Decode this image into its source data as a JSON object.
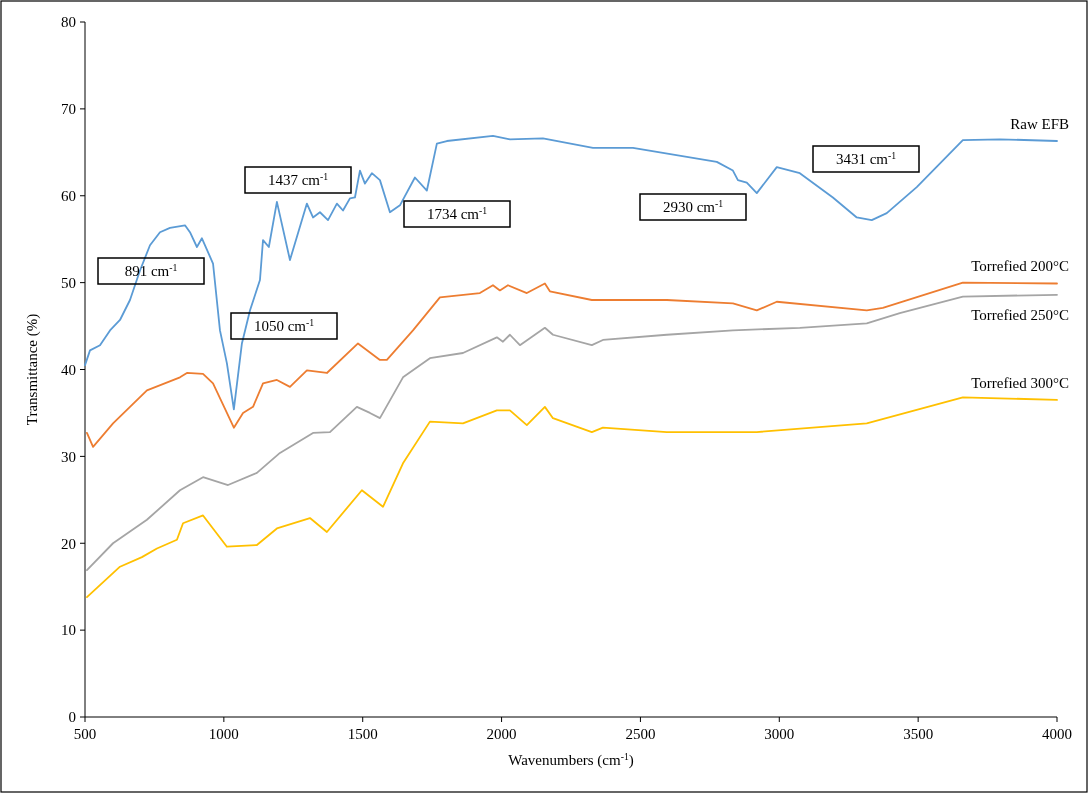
{
  "chart_data": {
    "type": "line",
    "xlabel": "Wavenumbers (cm$^{-1}$)",
    "ylabel": "Transmittance (%)",
    "xlim": [
      500,
      4000
    ],
    "xticks": [
      500,
      1000,
      1500,
      2000,
      2500,
      3000,
      3500,
      4000
    ],
    "ylim": [
      0,
      80
    ],
    "yticks": [
      0,
      10,
      20,
      30,
      40,
      50,
      60,
      70,
      80
    ],
    "grid": false,
    "legend": false,
    "marker": "none",
    "line_style": "solid",
    "series": [
      {
        "name": "Raw EFB",
        "color": "#5b9bd5",
        "x": [
          500,
          518,
          554,
          590,
          626,
          662,
          698,
          734,
          770,
          806,
          860,
          878,
          903,
          921,
          961,
          986,
          1011,
          1036,
          1065,
          1094,
          1130,
          1141,
          1162,
          1191,
          1238,
          1299,
          1321,
          1346,
          1375,
          1407,
          1429,
          1454,
          1472,
          1490,
          1508,
          1533,
          1562,
          1598,
          1634,
          1688,
          1731,
          1767,
          1803,
          1969,
          2030,
          2149,
          2329,
          2473,
          2775,
          2833,
          2851,
          2883,
          2919,
          2991,
          3074,
          3193,
          3279,
          3333,
          3387,
          3495,
          3661,
          3794,
          4000
        ],
        "values": [
          40.5,
          42.2,
          42.8,
          44.5,
          45.7,
          48,
          51.4,
          54.3,
          55.8,
          56.3,
          56.6,
          55.8,
          54.1,
          55.1,
          52.2,
          44.5,
          40.7,
          35.4,
          43,
          46.8,
          50.3,
          54.9,
          54.1,
          59.3,
          52.6,
          59.1,
          57.5,
          58.1,
          57.2,
          59.1,
          58.3,
          59.7,
          59.8,
          62.9,
          61.4,
          62.6,
          61.8,
          58.1,
          58.9,
          62.1,
          60.6,
          66,
          66.3,
          66.9,
          66.5,
          66.6,
          65.5,
          65.5,
          63.9,
          62.9,
          61.8,
          61.5,
          60.3,
          63.3,
          62.6,
          59.8,
          57.5,
          57.2,
          58,
          61,
          66.4,
          66.5,
          66.3
        ]
      },
      {
        "name": "Torrefied 200°C",
        "color": "#ed7d31",
        "x": [
          507,
          529,
          601,
          662,
          723,
          842,
          867,
          925,
          961,
          1036,
          1069,
          1105,
          1141,
          1191,
          1238,
          1299,
          1371,
          1483,
          1562,
          1587,
          1681,
          1778,
          1922,
          1969,
          1994,
          2023,
          2091,
          2156,
          2174,
          2325,
          2595,
          2833,
          2919,
          2991,
          3315,
          3373,
          3661,
          4000
        ],
        "values": [
          32.7,
          31.1,
          33.8,
          35.7,
          37.6,
          39.1,
          39.6,
          39.5,
          38.4,
          33.3,
          35,
          35.7,
          38.4,
          38.8,
          38,
          39.9,
          39.6,
          43,
          41.1,
          41.1,
          44.5,
          48.3,
          48.8,
          49.7,
          49.1,
          49.7,
          48.8,
          49.9,
          49,
          48,
          48,
          47.6,
          46.8,
          47.8,
          46.8,
          47.1,
          50,
          49.9
        ]
      },
      {
        "name": "Torrefied 250°C",
        "color": "#a5a5a5",
        "x": [
          507,
          601,
          723,
          842,
          925,
          1015,
          1119,
          1202,
          1321,
          1382,
          1479,
          1526,
          1562,
          1645,
          1742,
          1861,
          1983,
          2005,
          2030,
          2066,
          2156,
          2185,
          2325,
          2365,
          2595,
          2833,
          3074,
          3315,
          3434,
          3661,
          4000
        ],
        "values": [
          16.9,
          20,
          22.7,
          26.1,
          27.6,
          26.7,
          28.1,
          30.4,
          32.7,
          32.8,
          35.7,
          35,
          34.4,
          39.1,
          41.3,
          41.9,
          43.7,
          43.2,
          44,
          42.8,
          44.8,
          44,
          42.8,
          43.4,
          44,
          44.5,
          44.8,
          45.3,
          46.5,
          48.4,
          48.6
        ]
      },
      {
        "name": "Torrefied 300°C",
        "color": "#ffc000",
        "x": [
          507,
          626,
          705,
          759,
          831,
          853,
          925,
          1011,
          1119,
          1191,
          1310,
          1371,
          1497,
          1573,
          1645,
          1742,
          1861,
          1983,
          2030,
          2091,
          2156,
          2185,
          2325,
          2365,
          2595,
          2919,
          3315,
          3661,
          4000
        ],
        "values": [
          13.8,
          17.3,
          18.4,
          19.4,
          20.4,
          22.3,
          23.2,
          19.6,
          19.8,
          21.7,
          22.9,
          21.3,
          26.1,
          24.2,
          29.2,
          34,
          33.8,
          35.3,
          35.3,
          33.6,
          35.7,
          34.4,
          32.8,
          33.3,
          32.8,
          32.8,
          33.8,
          36.8,
          36.5
        ]
      }
    ],
    "annotations": [
      "891 cm$^{-1}$",
      "1050 cm$^{-1}$",
      "1437 cm$^{-1}$",
      "1734 cm$^{-1}$",
      "2930 cm$^{-1}$",
      "3431 cm$^{-1}$"
    ]
  }
}
